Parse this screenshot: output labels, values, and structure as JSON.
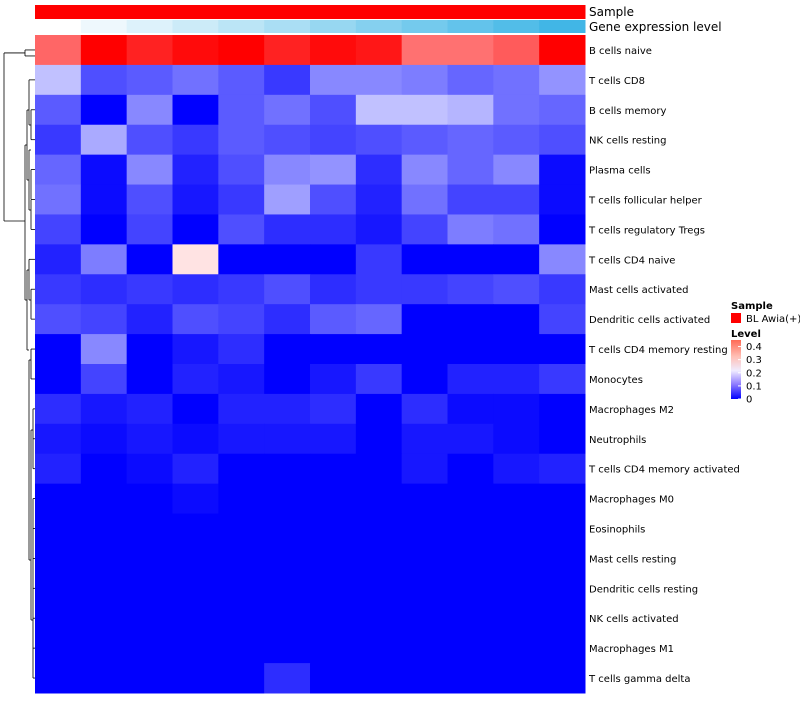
{
  "chart_data": {
    "type": "heatmap",
    "title": "",
    "row_labels": [
      "B cells naive",
      "T cells CD8",
      "B cells memory",
      "NK cells resting",
      "Plasma cells",
      "T cells follicular helper",
      "T cells regulatory  Tregs",
      "T cells CD4 naive",
      "Mast cells activated",
      "Dendritic cells activated",
      "T cells CD4 memory resting",
      "Monocytes",
      "Macrophages M2",
      "Neutrophils",
      "T cells CD4 memory activated",
      "Macrophages M0",
      "Eosinophils",
      "Mast cells resting",
      "Dendritic cells resting",
      "NK cells activated",
      "Macrophages M1",
      "T cells gamma delta"
    ],
    "column_count": 12,
    "values": [
      [
        0.36,
        0.45,
        0.42,
        0.44,
        0.45,
        0.42,
        0.44,
        0.43,
        0.35,
        0.35,
        0.37,
        0.45
      ],
      [
        0.17,
        0.07,
        0.08,
        0.1,
        0.08,
        0.05,
        0.12,
        0.12,
        0.11,
        0.09,
        0.1,
        0.13
      ],
      [
        0.08,
        0.0,
        0.12,
        0.0,
        0.08,
        0.1,
        0.07,
        0.17,
        0.17,
        0.16,
        0.1,
        0.09
      ],
      [
        0.05,
        0.15,
        0.07,
        0.05,
        0.08,
        0.07,
        0.06,
        0.07,
        0.08,
        0.09,
        0.08,
        0.07
      ],
      [
        0.09,
        0.01,
        0.12,
        0.03,
        0.07,
        0.12,
        0.13,
        0.04,
        0.12,
        0.09,
        0.12,
        0.01
      ],
      [
        0.1,
        0.01,
        0.07,
        0.02,
        0.05,
        0.14,
        0.07,
        0.03,
        0.1,
        0.06,
        0.06,
        0.01
      ],
      [
        0.06,
        0.0,
        0.06,
        0.0,
        0.07,
        0.04,
        0.04,
        0.02,
        0.06,
        0.11,
        0.1,
        0.0
      ],
      [
        0.03,
        0.11,
        0.0,
        0.25,
        0.0,
        0.0,
        0.0,
        0.05,
        0.0,
        0.0,
        0.0,
        0.12
      ],
      [
        0.05,
        0.04,
        0.05,
        0.04,
        0.05,
        0.07,
        0.04,
        0.05,
        0.05,
        0.06,
        0.07,
        0.05
      ],
      [
        0.07,
        0.06,
        0.03,
        0.07,
        0.06,
        0.04,
        0.08,
        0.09,
        0.0,
        0.0,
        0.0,
        0.06
      ],
      [
        0.0,
        0.12,
        0.0,
        0.02,
        0.04,
        0.0,
        0.0,
        0.0,
        0.0,
        0.0,
        0.0,
        0.0
      ],
      [
        0.0,
        0.06,
        0.0,
        0.03,
        0.02,
        0.0,
        0.02,
        0.05,
        0.0,
        0.03,
        0.03,
        0.05
      ],
      [
        0.04,
        0.02,
        0.03,
        0.0,
        0.03,
        0.03,
        0.04,
        0.0,
        0.04,
        0.01,
        0.01,
        0.0
      ],
      [
        0.02,
        0.01,
        0.02,
        0.01,
        0.02,
        0.02,
        0.02,
        0.0,
        0.02,
        0.02,
        0.01,
        0.0
      ],
      [
        0.03,
        0.0,
        0.01,
        0.03,
        0.0,
        0.0,
        0.0,
        0.0,
        0.02,
        0.0,
        0.02,
        0.03
      ],
      [
        0.0,
        0.0,
        0.0,
        0.01,
        0.0,
        0.0,
        0.0,
        0.0,
        0.0,
        0.0,
        0.0,
        0.0
      ],
      [
        0.0,
        0.0,
        0.0,
        0.0,
        0.0,
        0.0,
        0.0,
        0.0,
        0.0,
        0.0,
        0.0,
        0.0
      ],
      [
        0.0,
        0.0,
        0.0,
        0.0,
        0.0,
        0.0,
        0.0,
        0.0,
        0.0,
        0.0,
        0.0,
        0.0
      ],
      [
        0.0,
        0.0,
        0.0,
        0.0,
        0.0,
        0.0,
        0.0,
        0.0,
        0.0,
        0.0,
        0.0,
        0.0
      ],
      [
        0.0,
        0.0,
        0.0,
        0.0,
        0.0,
        0.0,
        0.0,
        0.0,
        0.0,
        0.0,
        0.0,
        0.0
      ],
      [
        0.0,
        0.0,
        0.0,
        0.0,
        0.0,
        0.0,
        0.0,
        0.0,
        0.0,
        0.0,
        0.0,
        0.0
      ],
      [
        0.0,
        0.0,
        0.0,
        0.0,
        0.0,
        0.04,
        0.0,
        0.0,
        0.0,
        0.0,
        0.0,
        0.0
      ]
    ],
    "annotations": {
      "sample": {
        "label": "Sample",
        "values": [
          "BL Awia(+)",
          "BL Awia(+)",
          "BL Awia(+)",
          "BL Awia(+)",
          "BL Awia(+)",
          "BL Awia(+)",
          "BL Awia(+)",
          "BL Awia(+)",
          "BL Awia(+)",
          "BL Awia(+)",
          "BL Awia(+)",
          "BL Awia(+)"
        ],
        "color": "#ff0000"
      },
      "gene_expression": {
        "label": "Gene expression level",
        "values": [
          0,
          0.09,
          0.18,
          0.27,
          0.36,
          0.45,
          0.55,
          0.64,
          0.73,
          0.82,
          0.91,
          1.0
        ],
        "low_color": "#ffffff",
        "high_color": "#41b6e6"
      }
    },
    "legend": {
      "sample_title": "Sample",
      "sample_entry": "BL Awia(+)",
      "sample_color": "#ff0000",
      "level_title": "Level",
      "ticks": [
        "0.4",
        "0.3",
        "0.2",
        "0.1",
        "0"
      ],
      "tick_values": [
        0.4,
        0.3,
        0.2,
        0.1,
        0
      ],
      "range": [
        0,
        0.45
      ]
    },
    "colors": {
      "low": "#0000ff",
      "mid": "#ffffff",
      "high": "#ff0000"
    },
    "row_dendrogram": true,
    "xlabel": "",
    "ylabel": ""
  }
}
